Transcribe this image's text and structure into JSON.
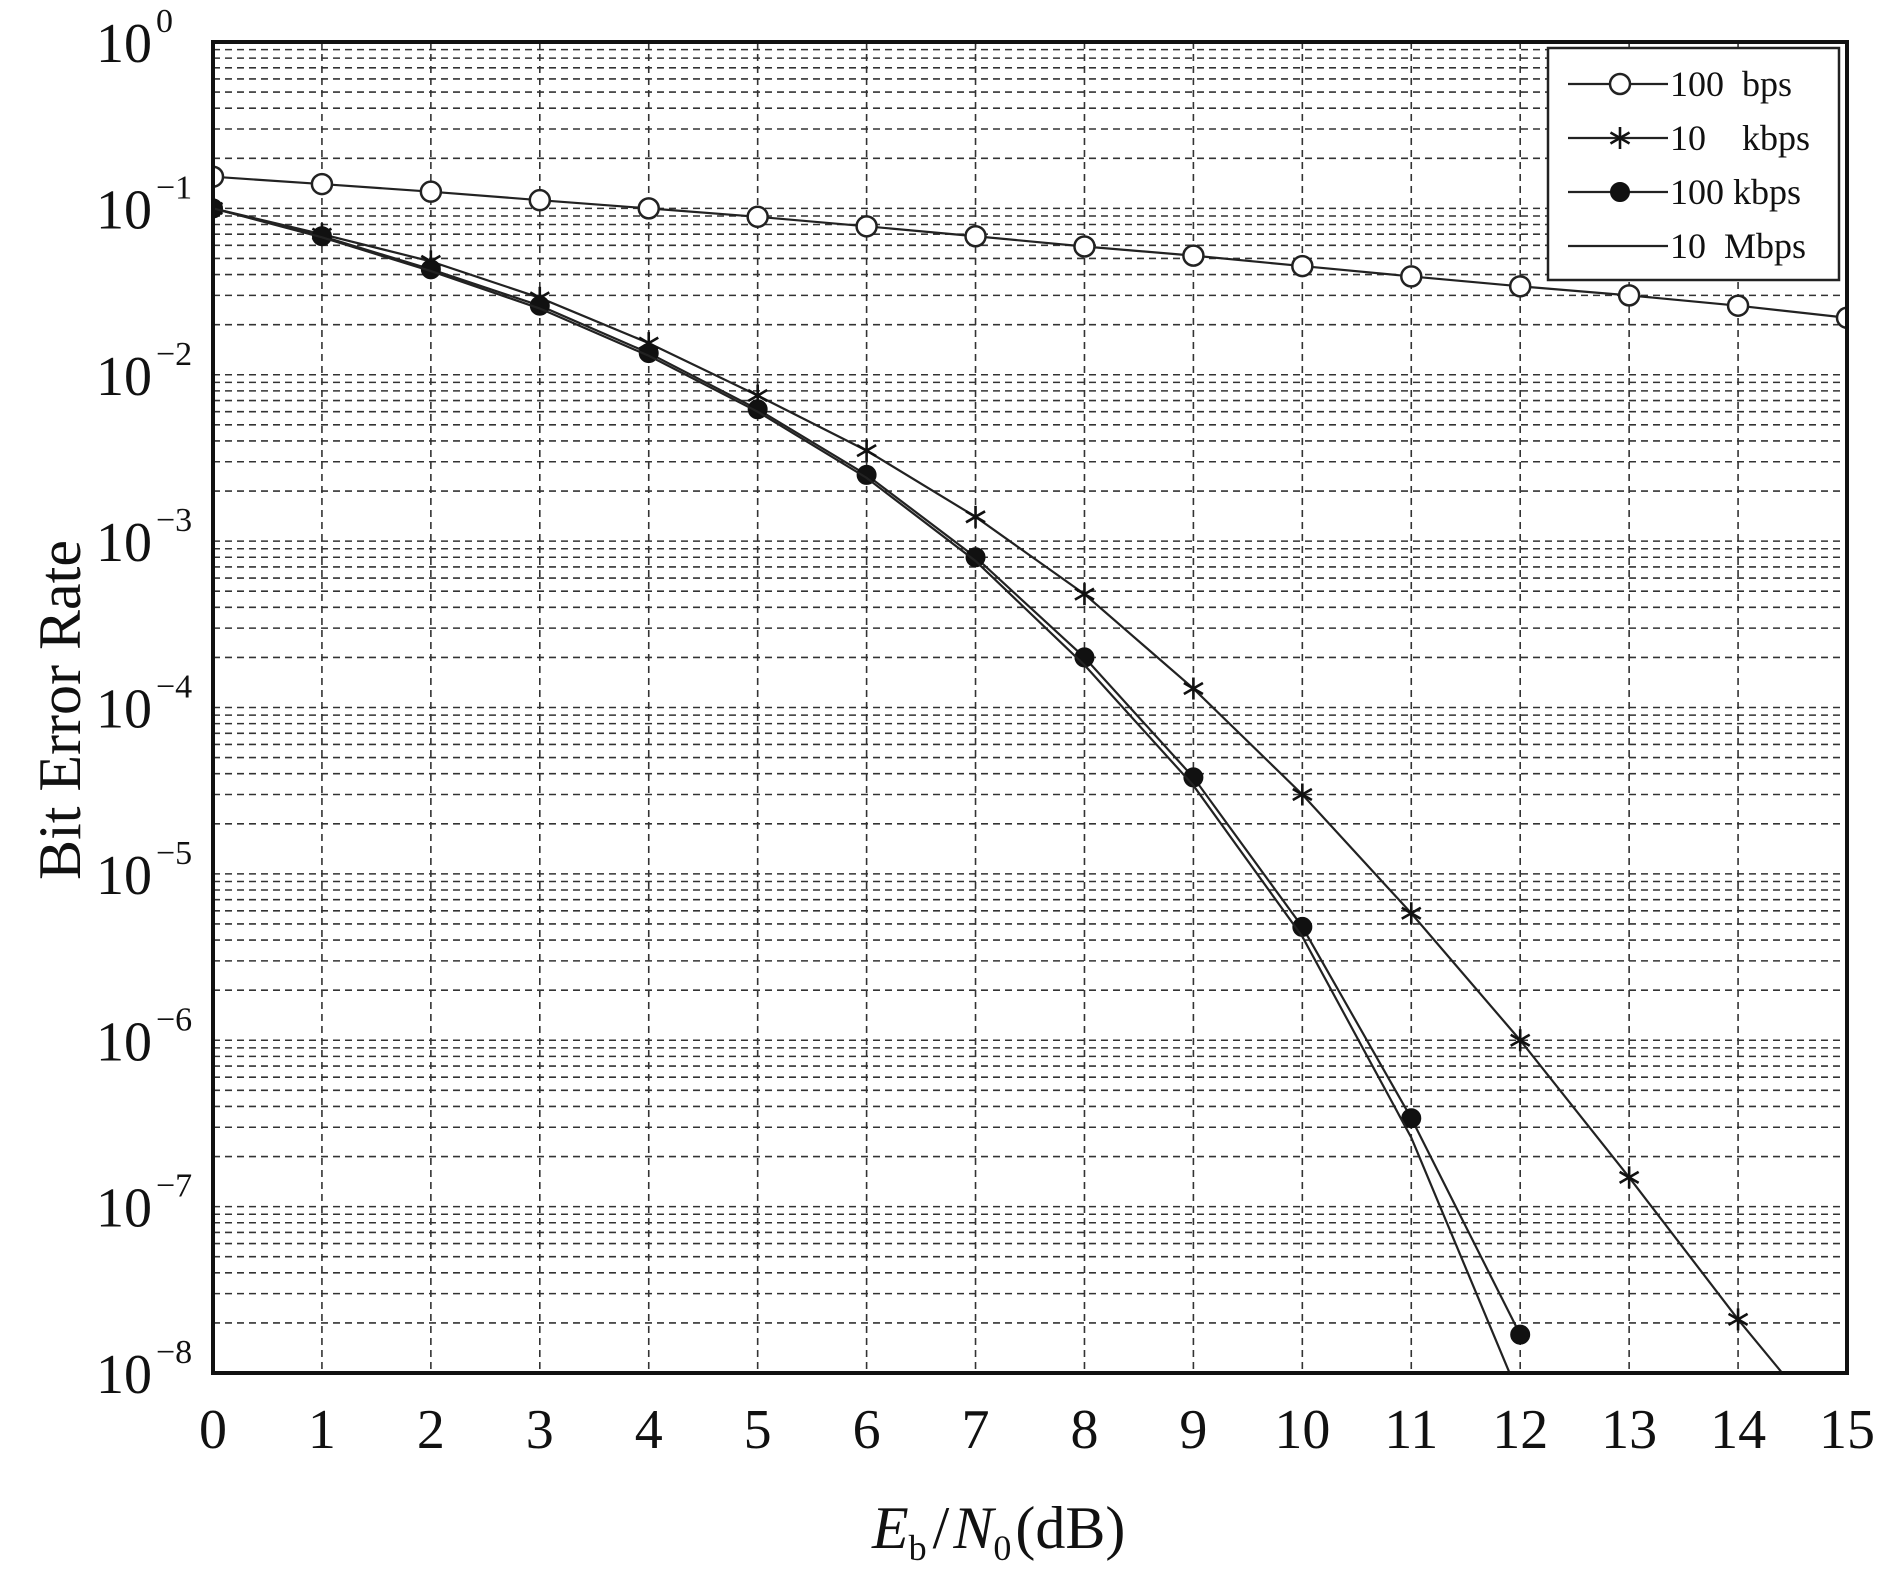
{
  "chart_data": {
    "type": "line",
    "xlabel": {
      "e": "E",
      "e_sub": "b",
      "slash": "/",
      "n": "N",
      "n_sub": "0",
      "unit": "(dB)"
    },
    "ylabel": "Bit Error Rate",
    "yscale": "log",
    "xlim": [
      0,
      15
    ],
    "ylim": [
      1e-08,
      1
    ],
    "grid": true,
    "legend_position": "top-right",
    "x_ticks": [
      "0",
      "1",
      "2",
      "3",
      "4",
      "5",
      "6",
      "7",
      "8",
      "9",
      "10",
      "11",
      "12",
      "13",
      "14",
      "15"
    ],
    "y_ticks": [
      {
        "base": "10",
        "exp": "0"
      },
      {
        "base": "10",
        "exp": "−1"
      },
      {
        "base": "10",
        "exp": "−2"
      },
      {
        "base": "10",
        "exp": "−3"
      },
      {
        "base": "10",
        "exp": "−4"
      },
      {
        "base": "10",
        "exp": "−5"
      },
      {
        "base": "10",
        "exp": "−6"
      },
      {
        "base": "10",
        "exp": "−7"
      },
      {
        "base": "10",
        "exp": "−8"
      }
    ],
    "series": [
      {
        "name": "100  bps",
        "marker": "circle",
        "x": [
          0,
          1,
          2,
          3,
          4,
          5,
          6,
          7,
          8,
          9,
          10,
          11,
          12,
          13,
          14,
          15
        ],
        "y": [
          0.155,
          0.14,
          0.126,
          0.112,
          0.1,
          0.089,
          0.078,
          0.068,
          0.059,
          0.052,
          0.045,
          0.039,
          0.034,
          0.03,
          0.026,
          0.022
        ]
      },
      {
        "name": "10    kbps",
        "marker": "star",
        "x": [
          0,
          1,
          2,
          3,
          4,
          5,
          6,
          7,
          8,
          9,
          10,
          11,
          12,
          13,
          14,
          14.4
        ],
        "y": [
          0.1,
          0.07,
          0.048,
          0.029,
          0.0155,
          0.0075,
          0.0035,
          0.0014,
          0.00048,
          0.00013,
          3e-05,
          5.8e-06,
          1e-06,
          1.5e-07,
          2.1e-08,
          1.01e-08
        ]
      },
      {
        "name": "100 kbps",
        "marker": "filled-circle",
        "x": [
          0,
          1,
          2,
          3,
          4,
          5,
          6,
          7,
          8,
          9,
          10,
          11,
          12
        ],
        "y": [
          0.1,
          0.068,
          0.043,
          0.026,
          0.0135,
          0.0062,
          0.0025,
          0.0008,
          0.0002,
          3.8e-05,
          4.8e-06,
          3.4e-07,
          1.7e-08
        ]
      },
      {
        "name": "10  Mbps",
        "marker": "none",
        "x": [
          0,
          1,
          2,
          3,
          4,
          5,
          6,
          7,
          8,
          9,
          10,
          11,
          11.9
        ],
        "y": [
          0.1,
          0.067,
          0.042,
          0.025,
          0.013,
          0.006,
          0.0024,
          0.00076,
          0.00018,
          3.4e-05,
          4.2e-06,
          2.6e-07,
          1.01e-08
        ]
      }
    ]
  }
}
